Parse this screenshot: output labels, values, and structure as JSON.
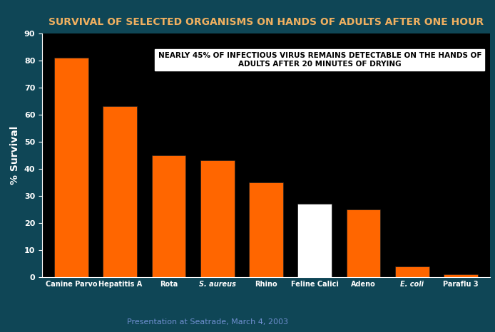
{
  "chart_data": {
    "type": "bar",
    "title": "SURVIVAL OF SELECTED ORGANISMS ON HANDS OF ADULTS AFTER ONE HOUR",
    "y_label": "% Survival",
    "annotation": "NEARLY 45% OF INFECTIOUS VIRUS REMAINS DETECTABLE ON THE HANDS OF ADULTS AFTER 20 MINUTES OF DRYING",
    "footnote": "Presentation at Seatrade, March 4, 2003",
    "categories": [
      "Canine Parvo",
      "Hepatitis A",
      "Rota",
      "S. aureus",
      "Rhino",
      "Feline Calici",
      "Adeno",
      "E. coli",
      "Paraflu 3"
    ],
    "values": [
      81,
      63,
      45,
      43,
      35,
      27,
      25,
      4,
      1
    ],
    "colors": [
      "#ff6600",
      "#ff6600",
      "#ff6600",
      "#ff6600",
      "#ff6600",
      "#ffffff",
      "#ff6600",
      "#ff6600",
      "#ff6600"
    ],
    "ylim": [
      0,
      90
    ],
    "yticks": [
      0,
      10,
      20,
      30,
      40,
      50,
      60,
      70,
      80,
      90
    ],
    "grid": false
  }
}
